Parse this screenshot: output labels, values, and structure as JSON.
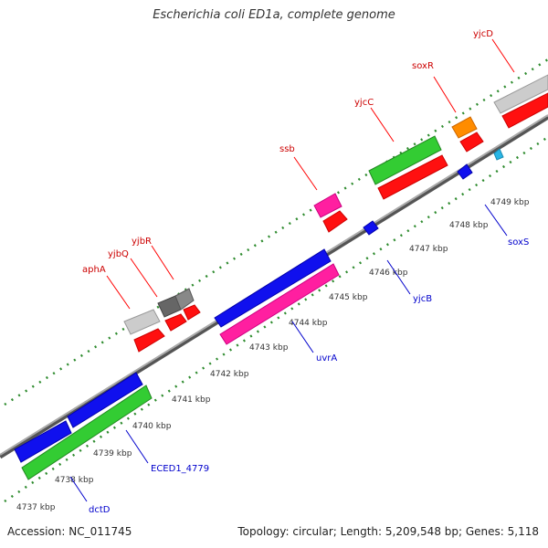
{
  "title": "Escherichia coli ED1a, complete genome",
  "accession": "Accession: NC_011745",
  "summary": "Topology: circular; Length: 5,209,548 bp; Genes: 5,118",
  "colors": {
    "backbone": "#8c8c8c",
    "tick": "#2e8b2e",
    "label_forward": "#cc0000",
    "label_reverse": "#0000cc",
    "callout_forward": "#ff0000",
    "callout_reverse": "#0000cc"
  },
  "scale_labels": [
    "4737 kbp",
    "4738 kbp",
    "4739 kbp",
    "4740 kbp",
    "4741 kbp",
    "4742 kbp",
    "4743 kbp",
    "4744 kbp",
    "4745 kbp",
    "4746 kbp",
    "4747 kbp",
    "4748 kbp",
    "4749 kbp"
  ],
  "genes_forward_labels": [
    "aphA",
    "yjbQ",
    "yjbR",
    "ssb",
    "yjcC",
    "soxR",
    "yjcD"
  ],
  "genes_reverse_labels": [
    "dctD",
    "ECED1_4779",
    "uvrA",
    "yjcB",
    "soxS"
  ]
}
